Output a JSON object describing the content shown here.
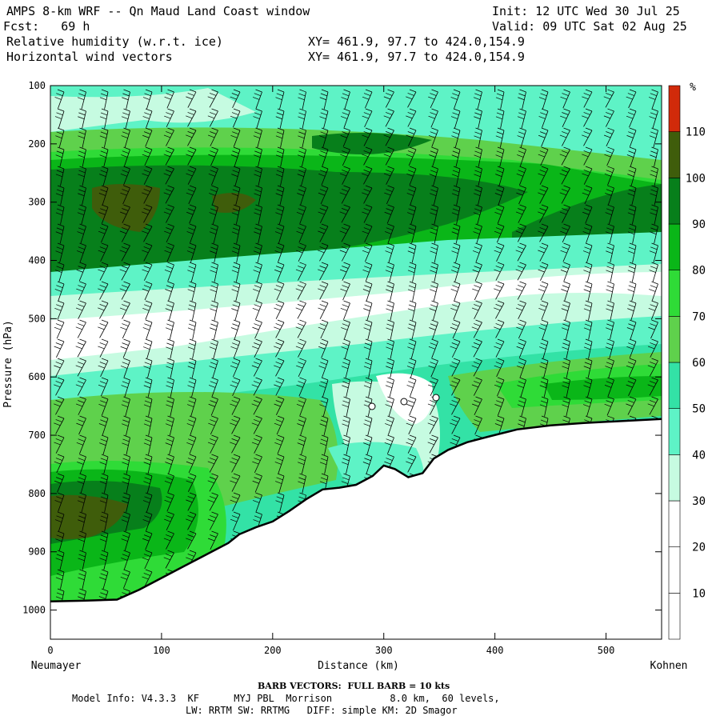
{
  "header": {
    "title": "AMPS 8-km WRF -- Qn Maud Land Coast window",
    "init": "Init: 12 UTC Wed 30 Jul 25",
    "fcst": "Fcst:   69 h",
    "valid": "Valid: 09 UTC Sat 02 Aug 25",
    "field1": "Relative humidity (w.r.t. ice)",
    "field1_xy": "XY= 461.9, 97.7 to 424.0,154.9",
    "field2": "Horizontal wind vectors",
    "field2_xy": "XY= 461.9, 97.7 to 424.0,154.9"
  },
  "footer": {
    "barb_title": "BARB VECTORS:  FULL BARB = 10 kts",
    "model_line1": "Model Info: V4.3.3  KF      MYJ PBL  Morrison          8.0 km,  60 levels,",
    "model_line2": "LW: RRTM SW: RRTMG   DIFF: simple KM: 2D Smagor"
  },
  "chart_data": {
    "type": "heatmap",
    "xlabel": "Distance (km)",
    "ylabel": "Pressure (hPa)",
    "x_ticks": [
      0,
      100,
      200,
      300,
      400,
      500
    ],
    "y_ticks": [
      100,
      200,
      300,
      400,
      500,
      600,
      700,
      800,
      900,
      1000
    ],
    "xlim": [
      0,
      550
    ],
    "ylim": [
      1050,
      100
    ],
    "left_label": "Neumayer",
    "right_label": "Kohnen",
    "colorbar": {
      "unit": "%",
      "ticks": [
        10,
        20,
        30,
        40,
        50,
        60,
        70,
        80,
        90,
        100,
        110
      ],
      "levels": [
        {
          "from": 0,
          "to": 10,
          "color": "#ffffff"
        },
        {
          "from": 10,
          "to": 20,
          "color": "#ffffff"
        },
        {
          "from": 20,
          "to": 30,
          "color": "#ffffff"
        },
        {
          "from": 30,
          "to": 40,
          "color": "#c6fbe1"
        },
        {
          "from": 40,
          "to": 50,
          "color": "#5ef3c6"
        },
        {
          "from": 50,
          "to": 60,
          "color": "#33e2a6"
        },
        {
          "from": 60,
          "to": 70,
          "color": "#5fd14c"
        },
        {
          "from": 70,
          "to": 80,
          "color": "#2fdb37"
        },
        {
          "from": 80,
          "to": 90,
          "color": "#0ab618"
        },
        {
          "from": 90,
          "to": 100,
          "color": "#077f1b"
        },
        {
          "from": 100,
          "to": 110,
          "color": "#3f5d0b"
        },
        {
          "from": 110,
          "to": 120,
          "color": "#d12a0a"
        }
      ]
    },
    "terrain_surface_hPa": [
      [
        0,
        985
      ],
      [
        30,
        984
      ],
      [
        60,
        982
      ],
      [
        80,
        965
      ],
      [
        100,
        945
      ],
      [
        120,
        925
      ],
      [
        140,
        905
      ],
      [
        160,
        885
      ],
      [
        170,
        870
      ],
      [
        185,
        858
      ],
      [
        200,
        848
      ],
      [
        215,
        830
      ],
      [
        230,
        810
      ],
      [
        245,
        793
      ],
      [
        260,
        790
      ],
      [
        275,
        785
      ],
      [
        290,
        770
      ],
      [
        300,
        752
      ],
      [
        310,
        758
      ],
      [
        322,
        772
      ],
      [
        335,
        765
      ],
      [
        345,
        740
      ],
      [
        358,
        725
      ],
      [
        375,
        712
      ],
      [
        395,
        702
      ],
      [
        420,
        690
      ],
      [
        450,
        683
      ],
      [
        480,
        679
      ],
      [
        510,
        676
      ],
      [
        550,
        672
      ]
    ],
    "rh_sample_profiles": [
      {
        "x": 20,
        "levels_hPa": [
          150,
          300,
          450,
          520,
          650,
          830,
          950
        ],
        "rh": [
          45,
          95,
          65,
          25,
          65,
          98,
          65
        ]
      },
      {
        "x": 150,
        "levels_hPa": [
          150,
          300,
          450,
          520,
          650,
          800,
          880
        ],
        "rh": [
          45,
          97,
          65,
          25,
          65,
          85,
          65
        ]
      },
      {
        "x": 300,
        "levels_hPa": [
          200,
          300,
          420,
          480,
          600,
          700
        ],
        "rh": [
          95,
          90,
          65,
          25,
          30,
          40
        ]
      },
      {
        "x": 450,
        "levels_hPa": [
          150,
          330,
          420,
          480,
          580,
          650
        ],
        "rh": [
          45,
          95,
          50,
          25,
          65,
          85
        ]
      }
    ]
  }
}
